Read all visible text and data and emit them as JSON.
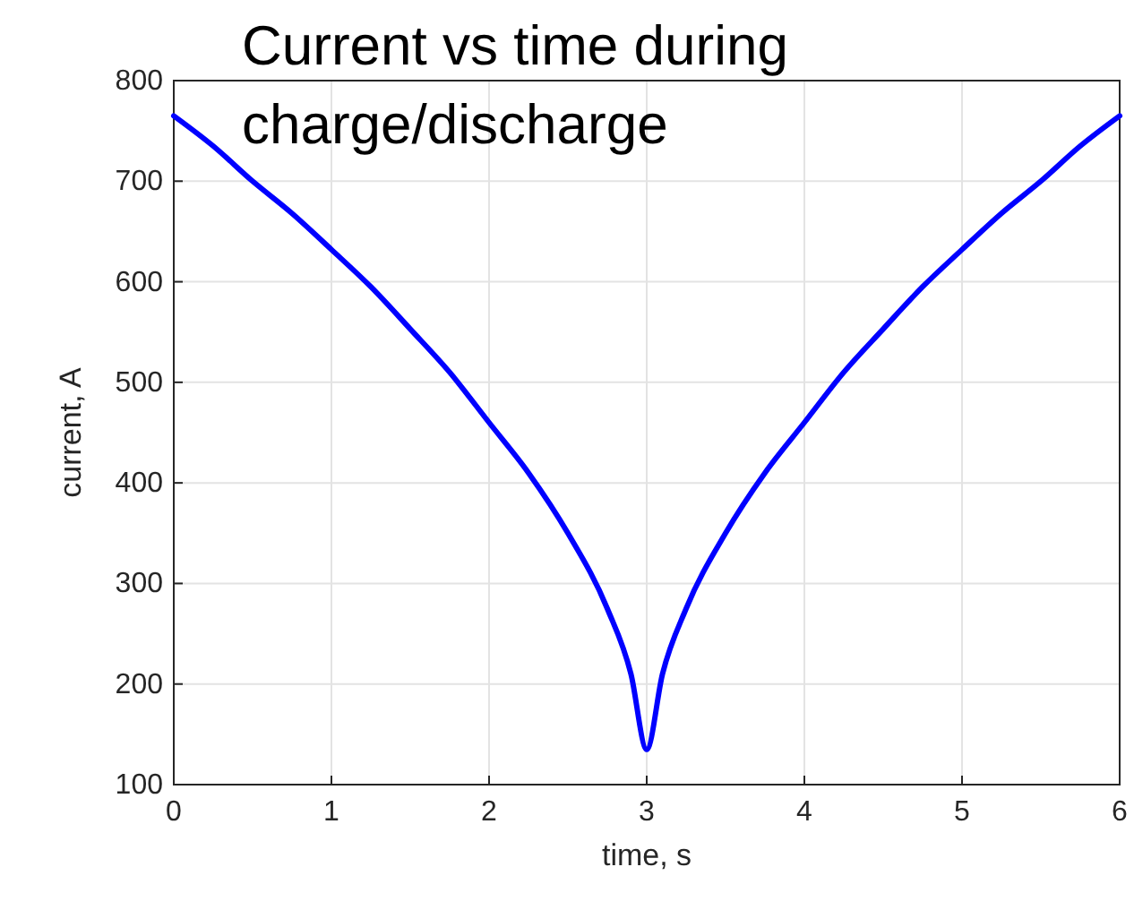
{
  "chart_data": {
    "type": "line",
    "title": "Current vs time during charge/discharge",
    "xlabel": "time, s",
    "ylabel": "current, A",
    "x": [
      0,
      0.25,
      0.5,
      0.75,
      1,
      1.25,
      1.5,
      1.75,
      2,
      2.25,
      2.5,
      2.75,
      2.9,
      3,
      3.1,
      3.25,
      3.5,
      3.75,
      4,
      4.25,
      4.5,
      4.75,
      5,
      5.25,
      5.5,
      5.75,
      6
    ],
    "series": [
      {
        "color": "#0000ff",
        "values": [
          765,
          735,
          700,
          668,
          632,
          595,
          553,
          510,
          460,
          410,
          350,
          275,
          210,
          135,
          210,
          275,
          350,
          410,
          460,
          510,
          553,
          595,
          632,
          668,
          700,
          735,
          765
        ]
      }
    ],
    "xlim": [
      0,
      6
    ],
    "xticks": [
      0,
      1,
      2,
      3,
      4,
      5,
      6
    ],
    "ylim": [
      100,
      800
    ],
    "yticks": [
      100,
      200,
      300,
      400,
      500,
      600,
      700,
      800
    ],
    "grid": true,
    "marker": "none",
    "line_style": "solid"
  }
}
